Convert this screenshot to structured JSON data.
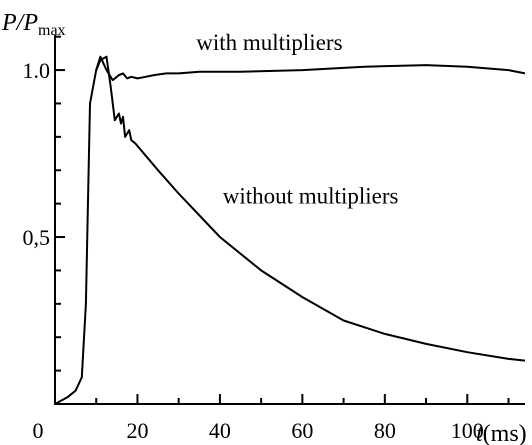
{
  "chart_data": {
    "type": "line",
    "title": "",
    "ylabel": {
      "main": "P/P",
      "subscript": "max"
    },
    "xlabel": {
      "var": "t",
      "unit": "(ms)"
    },
    "xlim": [
      0,
      114
    ],
    "ylim": [
      0,
      1.12
    ],
    "x_ticks": [
      0,
      20,
      40,
      60,
      80,
      100
    ],
    "x_tick_labels": [
      "0",
      "20",
      "40",
      "60",
      "80",
      "100"
    ],
    "x_minor_ticks": [
      10,
      30,
      50,
      70,
      90,
      110
    ],
    "y_ticks": [
      0.5,
      1.0
    ],
    "y_tick_labels": [
      "0,5",
      "1.0"
    ],
    "y_minor_ticks": [
      0.1,
      0.2,
      0.3,
      0.4,
      0.6,
      0.7,
      0.8,
      0.9,
      1.1
    ],
    "grid": false,
    "legend": "none",
    "series": [
      {
        "name": "with multipliers",
        "x": [
          0,
          3,
          5,
          6.5,
          7.5,
          8.5,
          10,
          11,
          12.5,
          14,
          15.5,
          16.5,
          17.5,
          18.5,
          20,
          22,
          24,
          27,
          30,
          35,
          45,
          60,
          75,
          90,
          100,
          110,
          114
        ],
        "y": [
          0.0,
          0.02,
          0.04,
          0.08,
          0.3,
          0.9,
          1.0,
          1.04,
          1.0,
          0.97,
          0.985,
          0.99,
          0.975,
          0.98,
          0.975,
          0.98,
          0.985,
          0.99,
          0.99,
          0.995,
          0.995,
          1.0,
          1.01,
          1.015,
          1.01,
          1.0,
          0.99
        ]
      },
      {
        "name": "without multipliers",
        "x": [
          10,
          11,
          12.5,
          13.5,
          14.5,
          15.5,
          16,
          16.5,
          17,
          18,
          18.5,
          19.5,
          25,
          30,
          40,
          50,
          60,
          70,
          80,
          90,
          100,
          110,
          114
        ],
        "y": [
          1.0,
          1.03,
          1.04,
          0.95,
          0.85,
          0.87,
          0.84,
          0.86,
          0.8,
          0.82,
          0.79,
          0.78,
          0.7,
          0.63,
          0.5,
          0.4,
          0.32,
          0.25,
          0.21,
          0.18,
          0.155,
          0.135,
          0.13
        ]
      }
    ],
    "annotations": [
      {
        "text": "with multipliers",
        "x": 52,
        "y": 1.06
      },
      {
        "text": "without multipliers",
        "x": 62,
        "y": 0.6
      }
    ]
  }
}
